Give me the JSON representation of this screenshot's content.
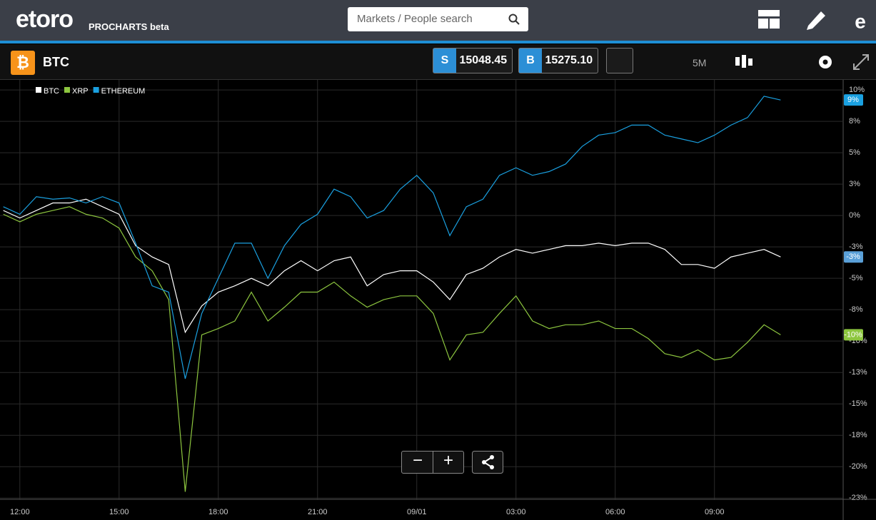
{
  "header": {
    "logo": "etoro",
    "product": "PROCHARTS beta",
    "search_placeholder": "Markets / People search"
  },
  "toolbar": {
    "symbol": "BTC",
    "sell_label": "S",
    "sell_price": "15048.45",
    "buy_label": "B",
    "buy_price": "15275.10",
    "interval": "5M"
  },
  "chart_data": {
    "type": "line",
    "x": [
      -0.5,
      0,
      0.5,
      1,
      1.5,
      2,
      2.5,
      3,
      3.5,
      4,
      4.5,
      5,
      5.5,
      6,
      6.5,
      7,
      7.5,
      8,
      8.5,
      9,
      9.5,
      10,
      10.5,
      11,
      11.5,
      12,
      12.5,
      13,
      13.5,
      14,
      14.5,
      15,
      15.5,
      16,
      16.5,
      17,
      17.5,
      18,
      18.5,
      19,
      19.5,
      20,
      20.5,
      21,
      21.5,
      22,
      22.5,
      23
    ],
    "xlim": [
      -0.6,
      24.87
    ],
    "xticks": [
      {
        "value": 0,
        "label": "12:00"
      },
      {
        "value": 3,
        "label": "15:00"
      },
      {
        "value": 6,
        "label": "18:00"
      },
      {
        "value": 9,
        "label": "21:00"
      },
      {
        "value": 12,
        "label": "09/01"
      },
      {
        "value": 15,
        "label": "03:00"
      },
      {
        "value": 18,
        "label": "06:00"
      },
      {
        "value": 21,
        "label": "09:00"
      }
    ],
    "ylim": [
      -22.6,
      10.8
    ],
    "yticks": [
      {
        "value": 10,
        "label": "10%"
      },
      {
        "value": 7.5,
        "label": "8%"
      },
      {
        "value": 5,
        "label": "5%"
      },
      {
        "value": 2.5,
        "label": "3%"
      },
      {
        "value": 0,
        "label": "0%"
      },
      {
        "value": -2.5,
        "label": "-3%"
      },
      {
        "value": -5,
        "label": "-5%"
      },
      {
        "value": -7.5,
        "label": "-8%"
      },
      {
        "value": -10,
        "label": "-10%"
      },
      {
        "value": -12.5,
        "label": "-13%"
      },
      {
        "value": -15,
        "label": "-15%"
      },
      {
        "value": -17.5,
        "label": "-18%"
      },
      {
        "value": -20,
        "label": "-20%"
      },
      {
        "value": -22.5,
        "label": "-23%"
      }
    ],
    "grid": true,
    "series": [
      {
        "name": "BTC",
        "color": "#ffffff",
        "last_label": "-3%",
        "values": [
          0.4,
          -0.2,
          0.4,
          1.0,
          1.0,
          1.3,
          0.7,
          0.1,
          -2.4,
          -3.3,
          -3.9,
          -9.3,
          -7.2,
          -6.1,
          -5.6,
          -5.0,
          -5.6,
          -4.4,
          -3.6,
          -4.4,
          -3.6,
          -3.3,
          -5.6,
          -4.7,
          -4.4,
          -4.4,
          -5.3,
          -6.7,
          -4.7,
          -4.2,
          -3.3,
          -2.7,
          -3.0,
          -2.7,
          -2.4,
          -2.4,
          -2.2,
          -2.4,
          -2.2,
          -2.2,
          -2.7,
          -3.9,
          -3.9,
          -4.2,
          -3.3,
          -3.0,
          -2.7,
          -3.3
        ]
      },
      {
        "name": "XRP",
        "color": "#8dc63f",
        "last_label": "-10%",
        "values": [
          0.1,
          -0.5,
          0.1,
          0.4,
          0.7,
          0.1,
          -0.2,
          -1.0,
          -3.3,
          -4.4,
          -6.7,
          -22.0,
          -9.5,
          -9.0,
          -8.4,
          -6.1,
          -8.4,
          -7.3,
          -6.1,
          -6.1,
          -5.3,
          -6.4,
          -7.3,
          -6.7,
          -6.4,
          -6.4,
          -7.8,
          -11.5,
          -9.5,
          -9.3,
          -7.8,
          -6.4,
          -8.4,
          -9.0,
          -8.7,
          -8.7,
          -8.4,
          -9.0,
          -9.0,
          -9.8,
          -11.0,
          -11.3,
          -10.7,
          -11.5,
          -11.3,
          -10.1,
          -8.7,
          -9.5
        ]
      },
      {
        "name": "ETHEREUM",
        "color": "#1aa0e0",
        "last_label": "9%",
        "values": [
          0.7,
          0.1,
          1.5,
          1.3,
          1.4,
          1.0,
          1.5,
          1.0,
          -2.2,
          -5.6,
          -6.1,
          -13.0,
          -7.8,
          -5.0,
          -2.2,
          -2.2,
          -5.0,
          -2.4,
          -0.7,
          0.1,
          2.1,
          1.5,
          -0.2,
          0.4,
          2.1,
          3.2,
          1.8,
          -1.6,
          0.7,
          1.3,
          3.2,
          3.8,
          3.2,
          3.5,
          4.1,
          5.5,
          6.4,
          6.6,
          7.2,
          7.2,
          6.4,
          6.1,
          5.8,
          6.4,
          7.2,
          7.8,
          9.5,
          9.2
        ]
      }
    ]
  }
}
